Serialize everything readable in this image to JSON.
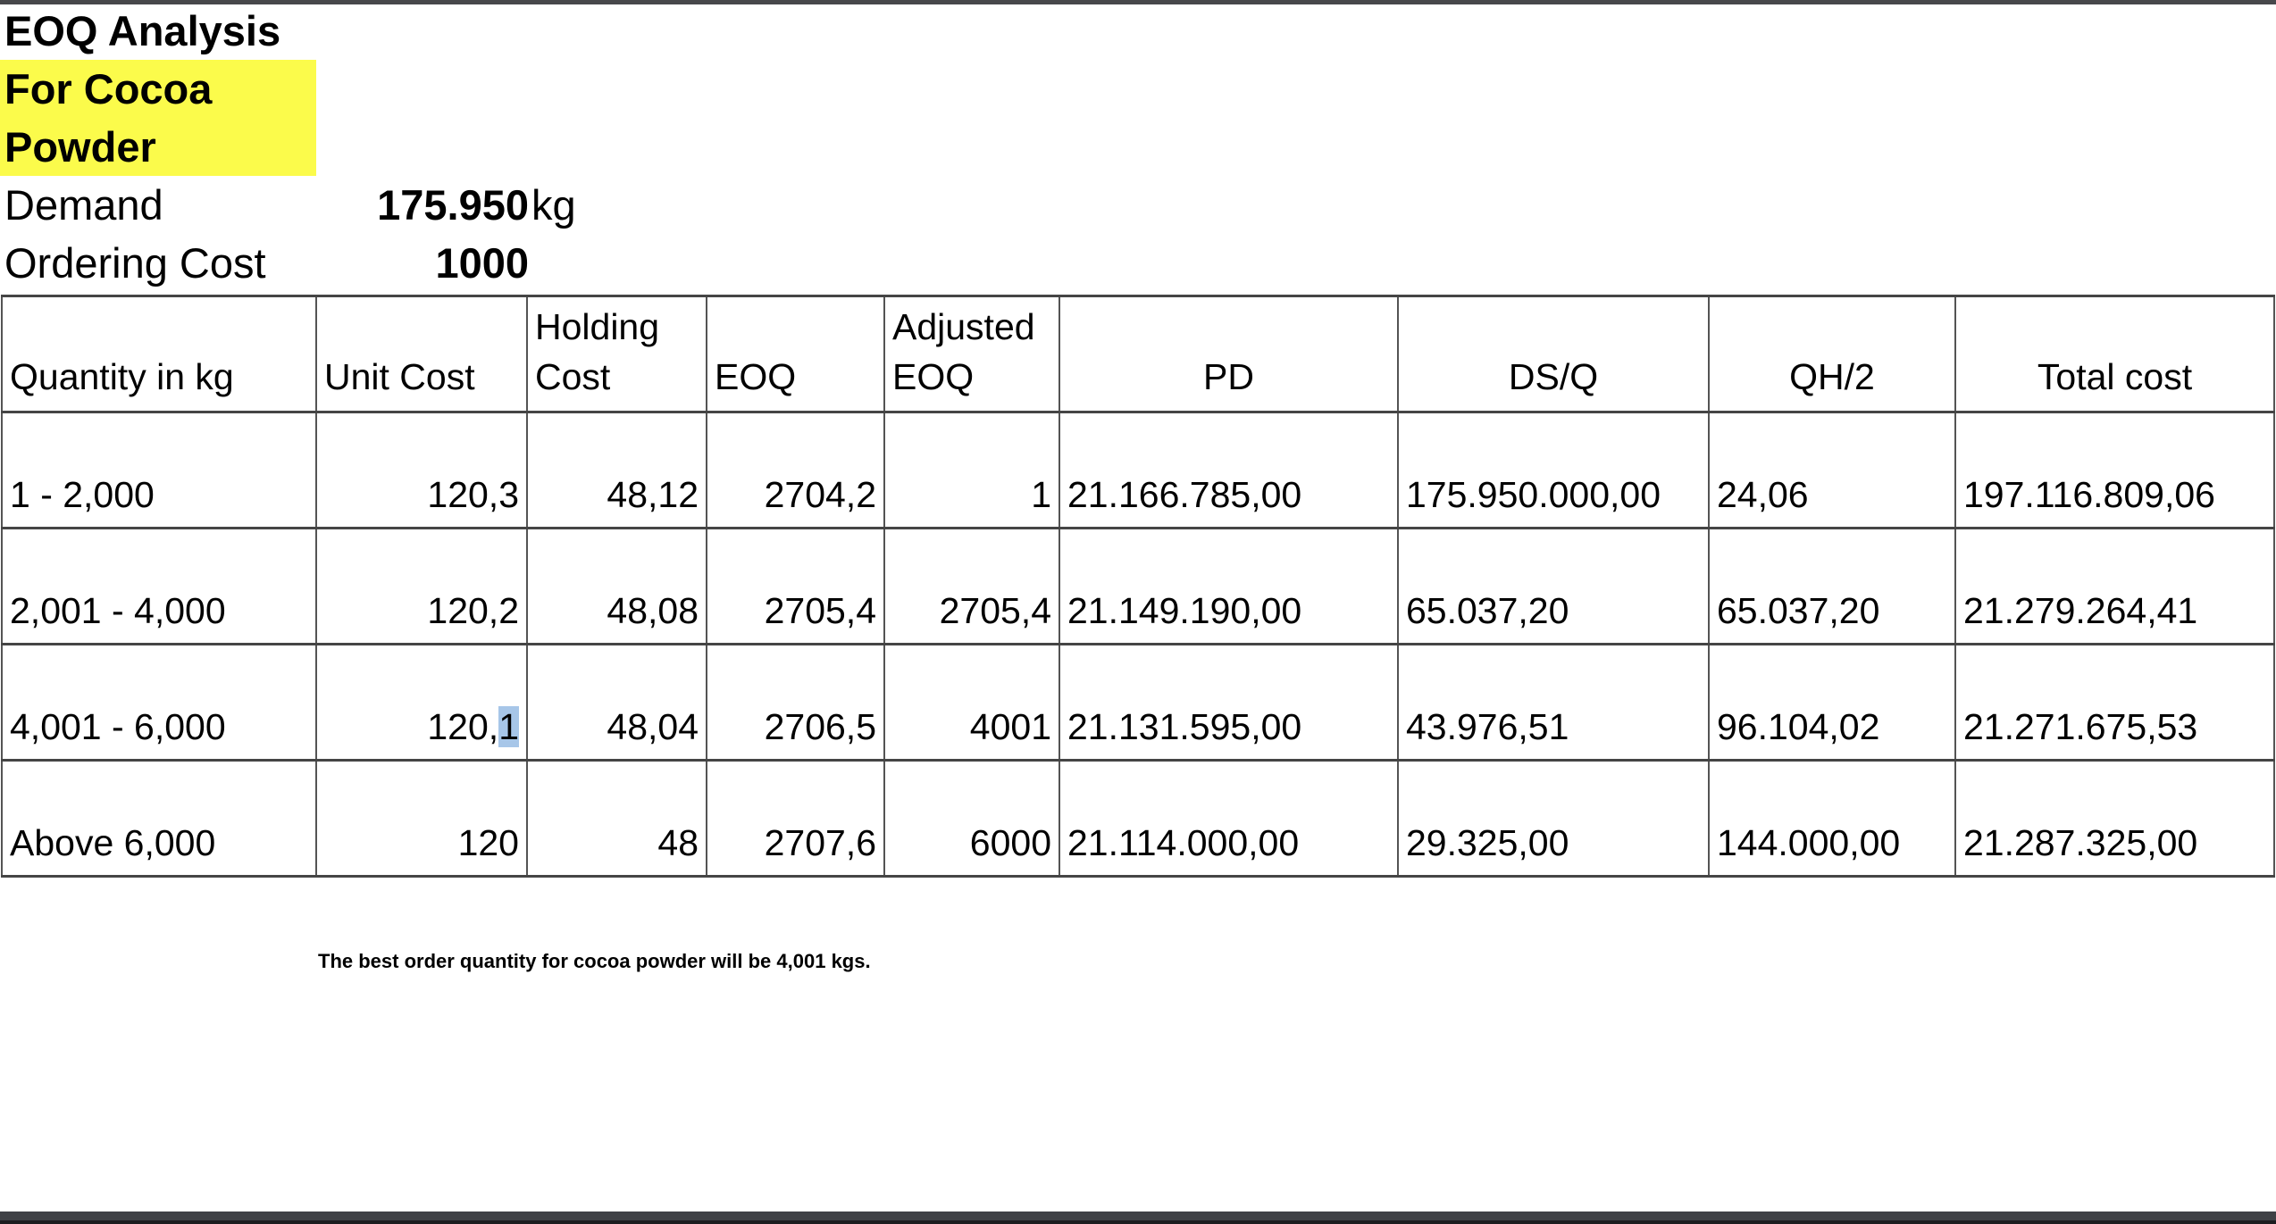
{
  "header": {
    "title": "EOQ Analysis",
    "subtitle_lines": [
      "For Cocoa",
      "Powder"
    ],
    "demand": {
      "label": "Demand",
      "value": "175.950",
      "unit": "kg"
    },
    "ordering_cost": {
      "label": "Ordering Cost",
      "value": "1000"
    }
  },
  "table": {
    "columns": [
      {
        "key": "quantity",
        "label": "Quantity in kg",
        "align": "left",
        "header_align": "left",
        "header_bold": true
      },
      {
        "key": "unit_cost",
        "label": "Unit Cost",
        "align": "right",
        "header_align": "left"
      },
      {
        "key": "holding_cost",
        "label": "Holding\nCost",
        "align": "right",
        "header_align": "left"
      },
      {
        "key": "eoq",
        "label": "EOQ",
        "align": "right",
        "header_align": "left"
      },
      {
        "key": "adjusted_eoq",
        "label": "Adjusted\nEOQ",
        "align": "right",
        "header_align": "left"
      },
      {
        "key": "pd",
        "label": "PD",
        "align": "left",
        "header_align": "center"
      },
      {
        "key": "dsq",
        "label": "DS/Q",
        "align": "left",
        "header_align": "center"
      },
      {
        "key": "qh2",
        "label": "QH/2",
        "align": "left",
        "header_align": "center"
      },
      {
        "key": "total_cost",
        "label": "Total cost",
        "align": "left",
        "header_align": "center"
      }
    ],
    "rows": [
      {
        "quantity": "1 - 2,000",
        "unit_cost": "120,3",
        "holding_cost": "48,12",
        "eoq": "2704,2",
        "adjusted_eoq": "1",
        "pd": "21.166.785,00",
        "dsq": "175.950.000,00",
        "qh2": "24,06",
        "total_cost": "197.116.809,06"
      },
      {
        "quantity": "2,001 - 4,000",
        "unit_cost": "120,2",
        "holding_cost": "48,08",
        "eoq": "2705,4",
        "adjusted_eoq": "2705,4",
        "pd": "21.149.190,00",
        "dsq": "65.037,20",
        "qh2": "65.037,20",
        "total_cost": "21.279.264,41"
      },
      {
        "quantity": "4,001 - 6,000",
        "unit_cost": "120,1",
        "holding_cost": "48,04",
        "eoq": "2706,5",
        "adjusted_eoq": "4001",
        "pd": "21.131.595,00",
        "dsq": "43.976,51",
        "qh2": "96.104,02",
        "total_cost": "21.271.675,53",
        "selection": {
          "key": "unit_cost",
          "suffix": "1"
        },
        "bold_keys": [
          "total_cost"
        ]
      },
      {
        "quantity": "Above 6,000",
        "unit_cost": "120",
        "holding_cost": "48",
        "eoq": "2707,6",
        "adjusted_eoq": "6000",
        "pd": "21.114.000,00",
        "dsq": "29.325,00",
        "qh2": "144.000,00",
        "total_cost": "21.287.325,00"
      }
    ]
  },
  "note": "The best order quantity for cocoa powder will be 4,001 kgs.",
  "colors": {
    "highlight_yellow": "#fbfb4b",
    "selection_blue": "#a7c6e8",
    "top_strip": "#47484b",
    "bottom_bar": "#3f4146",
    "grid_line": "#4f4f4f"
  }
}
